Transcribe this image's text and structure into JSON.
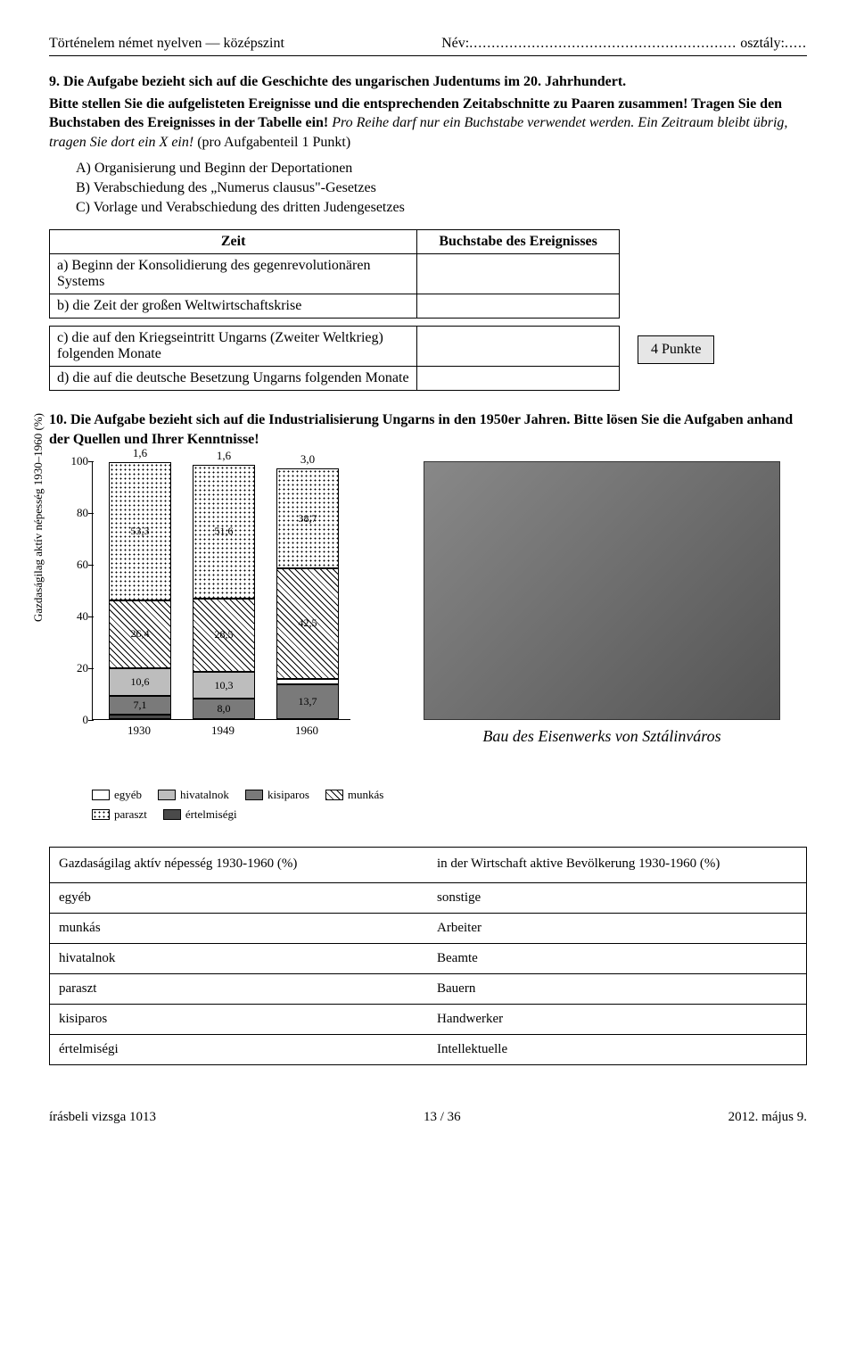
{
  "header": {
    "left": "Történelem német nyelven — középszint",
    "name_label": "Név:",
    "name_dots": "............................................................",
    "class_label": "osztály:",
    "class_dots": "....."
  },
  "task9": {
    "title": "9. Die Aufgabe bezieht sich auf die Geschichte des ungarischen Judentums im 20. Jahrhundert.",
    "instr1": "Bitte stellen Sie die aufgelisteten Ereignisse und die entsprechenden Zeitabschnitte zu Paaren zusammen! Tragen Sie den Buchstaben des Ereignisses in der Tabelle ein! ",
    "instr2_italic": "Pro Reihe darf nur ein Buchstabe verwendet werden. Ein Zeitraum bleibt übrig, tragen Sie dort ein X ein!",
    "instr3": " (pro Aufgabenteil 1 Punkt)",
    "optA": "A) Organisierung und Beginn der Deportationen",
    "optB": "B) Verabschiedung des „Numerus clausus\"-Gesetzes",
    "optC": "C) Vorlage und Verabschiedung des dritten Judengesetzes",
    "col1": "Zeit",
    "col2": "Buchstabe des Ereignisses",
    "rowA": "a) Beginn der Konsolidierung des gegenrevolutionären Systems",
    "rowB": "b) die Zeit der großen Weltwirtschaftskrise",
    "rowC": "c) die auf den Kriegseintritt Ungarns (Zweiter Weltkrieg) folgenden Monate",
    "rowD": "d) die auf die deutsche Besetzung Ungarns folgenden Monate",
    "points": "4 Punkte"
  },
  "task10": {
    "title": "10. Die Aufgabe bezieht sich auf die Industrialisierung Ungarns in den 1950er Jahren. Bitte lösen Sie die Aufgaben anhand der Quellen und Ihrer Kenntnisse!"
  },
  "chart": {
    "ylabel": "Gazdaságilag aktív népesség 1930–1960 (%)",
    "ylim": [
      0,
      100
    ],
    "ytick_step": 20,
    "years": [
      "1930",
      "1949",
      "1960"
    ],
    "top_labels": [
      "1,6",
      "1,6",
      "3,0"
    ],
    "colors": {
      "axis": "#000000",
      "bg": "#ffffff"
    },
    "bars": [
      {
        "segs": [
          {
            "cat": "ertelmisegi",
            "val": 2.0,
            "label": "2,0"
          },
          {
            "cat": "kisiparos",
            "val": 7.1,
            "label": "7,1"
          },
          {
            "cat": "hivatalnok",
            "val": 10.6,
            "label": "10,6"
          },
          {
            "cat": "munkas",
            "val": 26.4,
            "label": "26,4"
          },
          {
            "cat": "paraszt",
            "val": 53.3,
            "label": "53,3"
          }
        ]
      },
      {
        "segs": [
          {
            "cat": "ertelmisegi",
            "val": 0,
            "label": "0"
          },
          {
            "cat": "kisiparos",
            "val": 8.0,
            "label": "8,0"
          },
          {
            "cat": "hivatalnok",
            "val": 10.3,
            "label": "10,3"
          },
          {
            "cat": "munkas",
            "val": 28.5,
            "label": "28,5"
          },
          {
            "cat": "paraszt",
            "val": 51.6,
            "label": "51,6"
          }
        ]
      },
      {
        "segs": [
          {
            "cat": "ertelmisegi",
            "val": 0,
            "label": "0"
          },
          {
            "cat": "kisiparos",
            "val": 13.7,
            "label": "13,7"
          },
          {
            "cat": "egyeb",
            "val": 2.1,
            "label": "2,1"
          },
          {
            "cat": "munkas",
            "val": 42.5,
            "label": "42,5"
          },
          {
            "cat": "paraszt",
            "val": 38.7,
            "label": "38,7"
          }
        ]
      }
    ],
    "legend": [
      {
        "cat": "egyeb",
        "label": "egyéb"
      },
      {
        "cat": "hivatalnok",
        "label": "hivatalnok"
      },
      {
        "cat": "kisiparos",
        "label": "kisiparos"
      },
      {
        "cat": "munkas",
        "label": "munkás"
      },
      {
        "cat": "paraszt",
        "label": "paraszt"
      },
      {
        "cat": "ertelmisegi",
        "label": "értelmiségi"
      }
    ]
  },
  "photo_caption": "Bau des Eisenwerks von Sztálinváros",
  "vocab": {
    "rows": [
      [
        "Gazdaságilag aktív népesség 1930-1960 (%)",
        "in der Wirtschaft aktive Bevölkerung 1930-1960 (%)"
      ],
      [
        "egyéb",
        "sonstige"
      ],
      [
        "munkás",
        "Arbeiter"
      ],
      [
        "hivatalnok",
        "Beamte"
      ],
      [
        "paraszt",
        "Bauern"
      ],
      [
        "kisiparos",
        "Handwerker"
      ],
      [
        "értelmiségi",
        "Intellektuelle"
      ]
    ]
  },
  "footer": {
    "left": "írásbeli vizsga 1013",
    "center": "13 / 36",
    "right": "2012. május 9."
  }
}
